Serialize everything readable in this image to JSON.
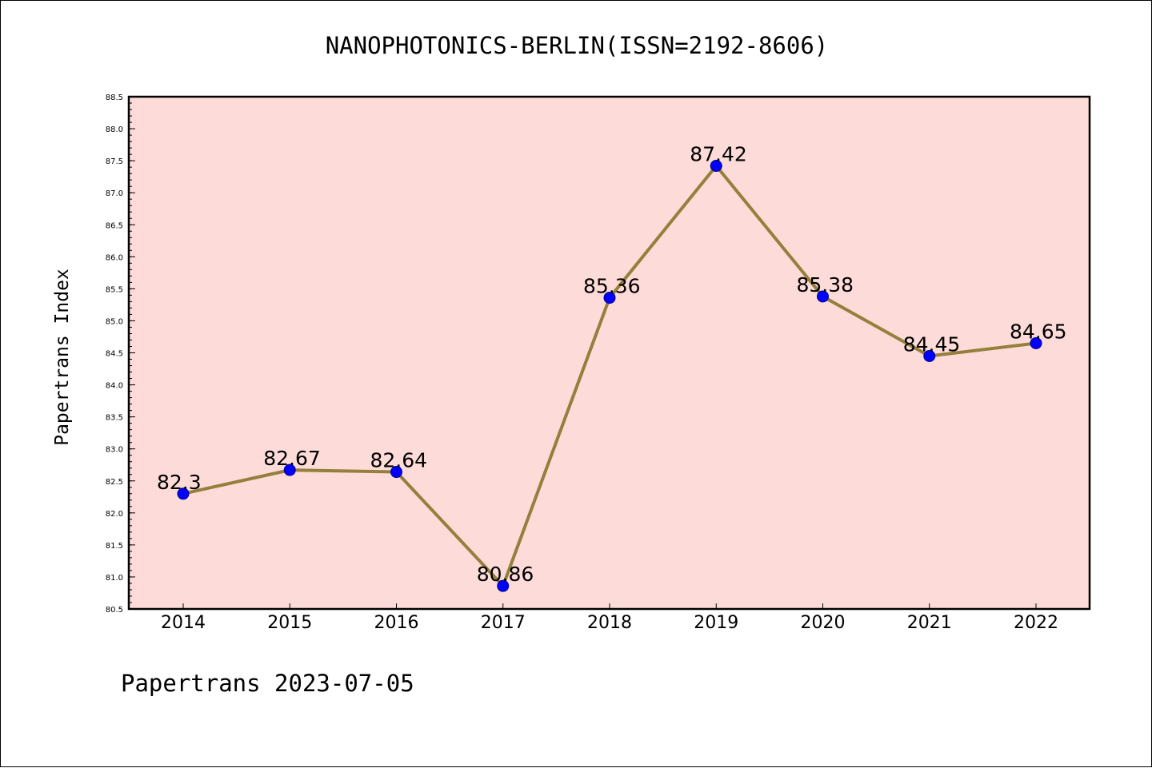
{
  "chart_data": {
    "type": "line",
    "title": "NANOPHOTONICS-BERLIN(ISSN=2192-8606)",
    "ylabel": "Papertrans Index",
    "xlabel": "",
    "footer": "Papertrans 2023-07-05",
    "categories": [
      "2014",
      "2015",
      "2016",
      "2017",
      "2018",
      "2019",
      "2020",
      "2021",
      "2022"
    ],
    "values": [
      82.3,
      82.67,
      82.64,
      80.86,
      85.36,
      87.42,
      85.38,
      84.45,
      84.65
    ],
    "data_labels": [
      "82.3",
      "82.67",
      "82.64",
      "80.86",
      "85.36",
      "87.42",
      "85.38",
      "84.45",
      "84.65"
    ],
    "ylim": [
      80.5,
      88.5
    ],
    "yticks": [
      "80.5",
      "81.0",
      "81.5",
      "82.0",
      "82.5",
      "83.0",
      "83.5",
      "84.0",
      "84.5",
      "85.0",
      "85.5",
      "86.0",
      "86.5",
      "87.0",
      "87.5",
      "88.0",
      "88.5"
    ],
    "grid": false,
    "legend": "none",
    "colors": {
      "plot_background": "#fddbd8",
      "line": "#94803c",
      "marker": "#0000ff",
      "marker_edge": "#00008b",
      "axes": "#000000"
    }
  }
}
